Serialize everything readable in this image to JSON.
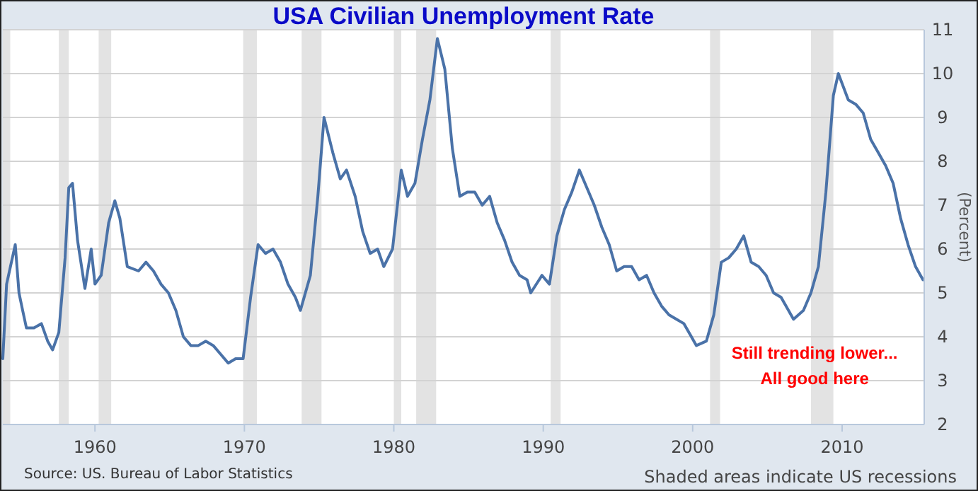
{
  "chart_data": {
    "type": "line",
    "title": "USA Civilian Unemployment Rate",
    "ylabel": "(Percent)",
    "x": [
      "1953-11",
      "1954-02",
      "1954-09",
      "1954-12",
      "1955-03",
      "1955-06",
      "1955-12",
      "1956-06",
      "1956-11",
      "1957-03",
      "1957-08",
      "1958-01",
      "1958-04",
      "1958-07",
      "1958-11",
      "1959-05",
      "1959-10",
      "1960-01",
      "1960-06",
      "1960-12",
      "1961-05",
      "1961-09",
      "1962-03",
      "1962-12",
      "1963-06",
      "1963-12",
      "1964-06",
      "1964-12",
      "1965-06",
      "1965-12",
      "1966-06",
      "1966-12",
      "1967-06",
      "1967-12",
      "1968-06",
      "1968-12",
      "1969-06",
      "1969-12",
      "1970-06",
      "1970-12",
      "1971-06",
      "1971-12",
      "1972-06",
      "1972-12",
      "1973-06",
      "1973-10",
      "1974-06",
      "1974-12",
      "1975-05",
      "1975-12",
      "1976-06",
      "1976-11",
      "1977-06",
      "1977-12",
      "1978-06",
      "1978-12",
      "1979-05",
      "1979-12",
      "1980-07",
      "1980-12",
      "1981-06",
      "1981-12",
      "1982-06",
      "1982-12",
      "1983-06",
      "1983-12",
      "1984-06",
      "1984-12",
      "1985-06",
      "1985-12",
      "1986-06",
      "1986-12",
      "1987-06",
      "1987-12",
      "1988-06",
      "1988-12",
      "1989-03",
      "1989-12",
      "1990-06",
      "1990-12",
      "1991-06",
      "1991-12",
      "1992-06",
      "1992-12",
      "1993-06",
      "1993-12",
      "1994-06",
      "1994-12",
      "1995-06",
      "1995-12",
      "1996-06",
      "1996-12",
      "1997-06",
      "1997-12",
      "1998-06",
      "1998-12",
      "1999-06",
      "1999-12",
      "2000-04",
      "2000-12",
      "2001-06",
      "2001-12",
      "2002-06",
      "2002-12",
      "2003-06",
      "2003-12",
      "2004-06",
      "2004-12",
      "2005-06",
      "2005-12",
      "2006-06",
      "2006-10",
      "2007-06",
      "2007-12",
      "2008-06",
      "2008-12",
      "2009-06",
      "2009-10",
      "2010-06",
      "2010-12",
      "2011-06",
      "2011-12",
      "2012-06",
      "2012-12",
      "2013-06",
      "2013-12",
      "2014-06",
      "2014-12",
      "2015-06"
    ],
    "series": [
      {
        "color": "#4a72a8",
        "values": [
          3.5,
          5.2,
          6.1,
          5.0,
          4.6,
          4.2,
          4.2,
          4.3,
          3.9,
          3.7,
          4.1,
          5.8,
          7.4,
          7.5,
          6.2,
          5.1,
          6.0,
          5.2,
          5.4,
          6.6,
          7.1,
          6.7,
          5.6,
          5.5,
          5.7,
          5.5,
          5.2,
          5.0,
          4.6,
          4.0,
          3.8,
          3.8,
          3.9,
          3.8,
          3.6,
          3.4,
          3.5,
          3.5,
          4.9,
          6.1,
          5.9,
          6.0,
          5.7,
          5.2,
          4.9,
          4.6,
          5.4,
          7.2,
          9.0,
          8.2,
          7.6,
          7.8,
          7.2,
          6.4,
          5.9,
          6.0,
          5.6,
          6.0,
          7.8,
          7.2,
          7.5,
          8.5,
          9.4,
          10.8,
          10.1,
          8.3,
          7.2,
          7.3,
          7.3,
          7.0,
          7.2,
          6.6,
          6.2,
          5.7,
          5.4,
          5.3,
          5.0,
          5.4,
          5.2,
          6.3,
          6.9,
          7.3,
          7.8,
          7.4,
          7.0,
          6.5,
          6.1,
          5.5,
          5.6,
          5.6,
          5.3,
          5.4,
          5.0,
          4.7,
          4.5,
          4.4,
          4.3,
          4.0,
          3.8,
          3.9,
          4.5,
          5.7,
          5.8,
          6.0,
          6.3,
          5.7,
          5.6,
          5.4,
          5.0,
          4.9,
          4.6,
          4.4,
          4.6,
          5.0,
          5.6,
          7.3,
          9.5,
          10.0,
          9.4,
          9.3,
          9.1,
          8.5,
          8.2,
          7.9,
          7.5,
          6.7,
          6.1,
          5.6,
          5.3
        ]
      }
    ],
    "xlim": [
      "1953-11",
      "2015-07"
    ],
    "xticks": [
      {
        "value": "1960-01",
        "label": "1960"
      },
      {
        "value": "1970-01",
        "label": "1970"
      },
      {
        "value": "1980-01",
        "label": "1980"
      },
      {
        "value": "1990-01",
        "label": "1990"
      },
      {
        "value": "2000-01",
        "label": "2000"
      },
      {
        "value": "2010-01",
        "label": "2010"
      }
    ],
    "ylim": [
      2,
      11
    ],
    "yticks": [
      2,
      3,
      4,
      5,
      6,
      7,
      8,
      9,
      10,
      11
    ],
    "grid": "y",
    "line_style": "solid",
    "marker": "none",
    "bands": [
      {
        "axis": "x",
        "from": "1953-11",
        "to": "1954-05",
        "color": "#e3e3e3"
      },
      {
        "axis": "x",
        "from": "1957-08",
        "to": "1958-04",
        "color": "#e3e3e3"
      },
      {
        "axis": "x",
        "from": "1960-04",
        "to": "1961-02",
        "color": "#e3e3e3"
      },
      {
        "axis": "x",
        "from": "1969-12",
        "to": "1970-11",
        "color": "#e3e3e3"
      },
      {
        "axis": "x",
        "from": "1973-11",
        "to": "1975-03",
        "color": "#e3e3e3"
      },
      {
        "axis": "x",
        "from": "1980-01",
        "to": "1980-07",
        "color": "#e3e3e3"
      },
      {
        "axis": "x",
        "from": "1981-07",
        "to": "1982-11",
        "color": "#e3e3e3"
      },
      {
        "axis": "x",
        "from": "1990-07",
        "to": "1991-03",
        "color": "#e3e3e3"
      },
      {
        "axis": "x",
        "from": "2001-03",
        "to": "2001-11",
        "color": "#e3e3e3"
      },
      {
        "axis": "x",
        "from": "2007-12",
        "to": "2009-06",
        "color": "#e3e3e3"
      }
    ],
    "annotations": [
      "Source: US. Bureau of Labor Statistics",
      "Shaded areas indicate US recessions",
      {
        "text": "Still trending lower...\nAll good here",
        "x": "2008-03",
        "y": 3.5
      }
    ]
  }
}
